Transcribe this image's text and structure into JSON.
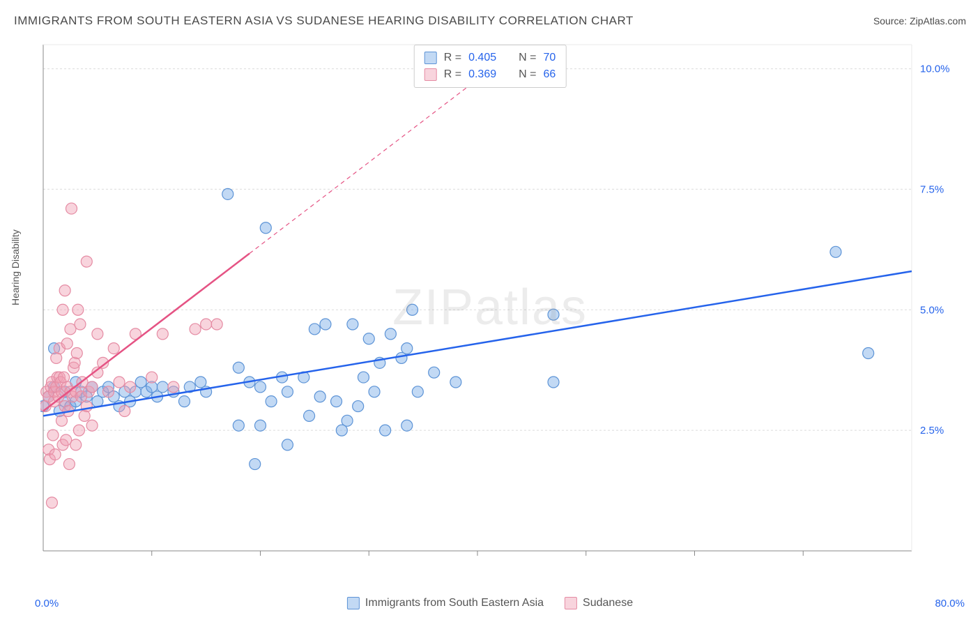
{
  "title": "IMMIGRANTS FROM SOUTH EASTERN ASIA VS SUDANESE HEARING DISABILITY CORRELATION CHART",
  "source": "Source: ZipAtlas.com",
  "watermark": "ZIPatlas",
  "yaxis_label": "Hearing Disability",
  "chart": {
    "type": "scatter",
    "x_min": 0,
    "x_max": 80,
    "y_min": 0,
    "y_max": 10.5,
    "y_ticks": [
      2.5,
      5.0,
      7.5,
      10.0
    ],
    "y_tick_labels": [
      "2.5%",
      "5.0%",
      "7.5%",
      "10.0%"
    ],
    "x_ticks": [
      10,
      20,
      30,
      40,
      50,
      60,
      70
    ],
    "x_end_labels": {
      "min": "0.0%",
      "max": "80.0%"
    },
    "grid_color": "#dcdcdc",
    "axis_color": "#888888",
    "background": "#ffffff",
    "marker_radius": 8,
    "marker_stroke_width": 1.2,
    "trend_line_width": 2.5,
    "font_size_tick": 15,
    "series": [
      {
        "name": "Immigrants from South Eastern Asia",
        "color_fill": "rgba(120,170,230,0.45)",
        "color_stroke": "#5c93d6",
        "trend_color": "#2563eb",
        "trend_dash": "none",
        "R": "0.405",
        "N": "70",
        "trend": {
          "x1": 0,
          "y1": 2.8,
          "x2": 80,
          "y2": 5.8
        },
        "points": [
          [
            0,
            3.0
          ],
          [
            0.5,
            3.2
          ],
          [
            1,
            3.4
          ],
          [
            1,
            4.2
          ],
          [
            1.5,
            2.9
          ],
          [
            2,
            3.1
          ],
          [
            2,
            3.3
          ],
          [
            2.5,
            3.0
          ],
          [
            3,
            3.5
          ],
          [
            3,
            3.1
          ],
          [
            3.5,
            3.3
          ],
          [
            4,
            3.2
          ],
          [
            4.5,
            3.4
          ],
          [
            5,
            3.1
          ],
          [
            5.5,
            3.3
          ],
          [
            6,
            3.4
          ],
          [
            6.5,
            3.2
          ],
          [
            7,
            3.0
          ],
          [
            7.5,
            3.3
          ],
          [
            8,
            3.1
          ],
          [
            8.5,
            3.3
          ],
          [
            9,
            3.5
          ],
          [
            9.5,
            3.3
          ],
          [
            10,
            3.4
          ],
          [
            10.5,
            3.2
          ],
          [
            11,
            3.4
          ],
          [
            12,
            3.3
          ],
          [
            13,
            3.1
          ],
          [
            13.5,
            3.4
          ],
          [
            14.5,
            3.5
          ],
          [
            15,
            3.3
          ],
          [
            17,
            7.4
          ],
          [
            18,
            3.8
          ],
          [
            18,
            2.6
          ],
          [
            19,
            3.5
          ],
          [
            19.5,
            1.8
          ],
          [
            20,
            2.6
          ],
          [
            20,
            3.4
          ],
          [
            20.5,
            6.7
          ],
          [
            21,
            3.1
          ],
          [
            22,
            3.6
          ],
          [
            22.5,
            3.3
          ],
          [
            22.5,
            2.2
          ],
          [
            24,
            3.6
          ],
          [
            24.5,
            2.8
          ],
          [
            25,
            4.6
          ],
          [
            25.5,
            3.2
          ],
          [
            26,
            4.7
          ],
          [
            27,
            3.1
          ],
          [
            27.5,
            2.5
          ],
          [
            28,
            2.7
          ],
          [
            28.5,
            4.7
          ],
          [
            29,
            3.0
          ],
          [
            29.5,
            3.6
          ],
          [
            30,
            4.4
          ],
          [
            30.5,
            3.3
          ],
          [
            31,
            3.9
          ],
          [
            31.5,
            2.5
          ],
          [
            32,
            4.5
          ],
          [
            33,
            4.0
          ],
          [
            33.5,
            2.6
          ],
          [
            33.5,
            4.2
          ],
          [
            34,
            5.0
          ],
          [
            34.5,
            3.3
          ],
          [
            36,
            3.7
          ],
          [
            38,
            3.5
          ],
          [
            47,
            4.9
          ],
          [
            47,
            3.5
          ],
          [
            73,
            6.2
          ],
          [
            76,
            4.1
          ]
        ]
      },
      {
        "name": "Sudanese",
        "color_fill": "rgba(240,160,180,0.45)",
        "color_stroke": "#e58ba3",
        "trend_color": "#e55384",
        "trend_dash_solid_end": 19,
        "trend_dash": "6,5",
        "R": "0.369",
        "N": "66",
        "trend": {
          "x1": 0,
          "y1": 2.9,
          "x2": 50,
          "y2": 11.5
        },
        "points": [
          [
            0.2,
            3.0
          ],
          [
            0.3,
            3.3
          ],
          [
            0.5,
            2.1
          ],
          [
            0.5,
            3.2
          ],
          [
            0.6,
            1.9
          ],
          [
            0.7,
            3.4
          ],
          [
            0.8,
            1.0
          ],
          [
            0.8,
            3.5
          ],
          [
            0.9,
            2.4
          ],
          [
            1.0,
            3.1
          ],
          [
            1.0,
            3.3
          ],
          [
            1.1,
            2.0
          ],
          [
            1.2,
            4.0
          ],
          [
            1.2,
            3.4
          ],
          [
            1.3,
            3.6
          ],
          [
            1.4,
            3.2
          ],
          [
            1.5,
            3.6
          ],
          [
            1.5,
            4.2
          ],
          [
            1.6,
            3.5
          ],
          [
            1.7,
            2.7
          ],
          [
            1.7,
            3.3
          ],
          [
            1.8,
            5.0
          ],
          [
            1.8,
            2.2
          ],
          [
            1.9,
            3.6
          ],
          [
            2.0,
            5.4
          ],
          [
            2.0,
            3.0
          ],
          [
            2.1,
            2.3
          ],
          [
            2.2,
            4.3
          ],
          [
            2.2,
            3.4
          ],
          [
            2.3,
            2.9
          ],
          [
            2.4,
            1.8
          ],
          [
            2.5,
            3.3
          ],
          [
            2.5,
            4.6
          ],
          [
            2.6,
            7.1
          ],
          [
            2.7,
            3.2
          ],
          [
            2.8,
            3.8
          ],
          [
            2.9,
            3.9
          ],
          [
            3.0,
            2.2
          ],
          [
            3.0,
            3.3
          ],
          [
            3.1,
            4.1
          ],
          [
            3.2,
            5.0
          ],
          [
            3.3,
            2.5
          ],
          [
            3.4,
            4.7
          ],
          [
            3.5,
            3.2
          ],
          [
            3.6,
            3.5
          ],
          [
            3.8,
            2.8
          ],
          [
            4.0,
            6.0
          ],
          [
            4.0,
            3.0
          ],
          [
            4.2,
            3.3
          ],
          [
            4.5,
            2.6
          ],
          [
            4.5,
            3.4
          ],
          [
            5.0,
            4.5
          ],
          [
            5.0,
            3.7
          ],
          [
            5.5,
            3.9
          ],
          [
            6.0,
            3.3
          ],
          [
            6.5,
            4.2
          ],
          [
            7.0,
            3.5
          ],
          [
            7.5,
            2.9
          ],
          [
            8.0,
            3.4
          ],
          [
            8.5,
            4.5
          ],
          [
            10,
            3.6
          ],
          [
            11,
            4.5
          ],
          [
            12,
            3.4
          ],
          [
            14,
            4.6
          ],
          [
            15,
            4.7
          ],
          [
            16,
            4.7
          ]
        ]
      }
    ]
  },
  "legend": {
    "r_label": "R =",
    "n_label": "N ="
  }
}
